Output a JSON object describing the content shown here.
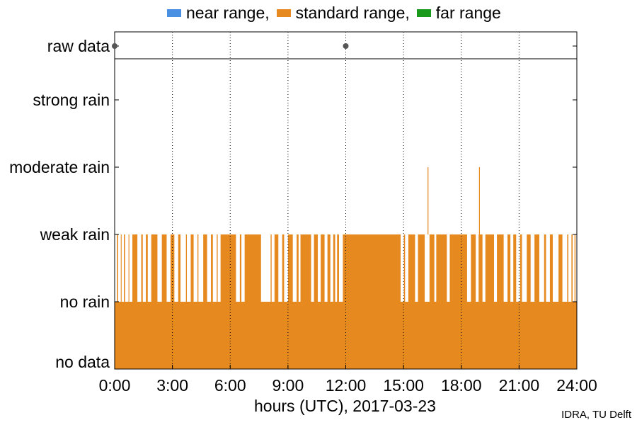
{
  "chart_data": {
    "type": "bar",
    "xlabel": "hours (UTC), 2017-03-23",
    "x_ticks": [
      "0:00",
      "3:00",
      "6:00",
      "9:00",
      "12:00",
      "15:00",
      "18:00",
      "21:00",
      "24:00"
    ],
    "x_range_hours": [
      0,
      24
    ],
    "y_categories": [
      "no data",
      "no rain",
      "weak rain",
      "moderate rain",
      "strong rain",
      "raw data"
    ],
    "grid": "vertical dotted at x ticks",
    "legend": {
      "placement": "top",
      "items": [
        {
          "label": "near range,",
          "color": "#4a90e2"
        },
        {
          "label": "standard range,",
          "color": "#e6891e"
        },
        {
          "label": "far range",
          "color": "#1a9a1a"
        }
      ]
    },
    "series": [
      {
        "name": "standard range",
        "color": "#e6891e",
        "baseline_level": "no rain",
        "weak_rain_intervals_hours": [
          [
            0.12,
            0.18
          ],
          [
            0.32,
            0.36
          ],
          [
            0.48,
            0.54
          ],
          [
            0.72,
            0.76
          ],
          [
            0.92,
            1.18
          ],
          [
            1.38,
            1.46
          ],
          [
            1.62,
            1.72
          ],
          [
            1.9,
            2.22
          ],
          [
            2.45,
            2.7
          ],
          [
            2.9,
            3.1
          ],
          [
            3.3,
            3.42
          ],
          [
            3.7,
            3.75
          ],
          [
            3.95,
            4.1
          ],
          [
            4.3,
            4.35
          ],
          [
            4.6,
            4.8
          ],
          [
            5.0,
            5.1
          ],
          [
            5.3,
            5.35
          ],
          [
            5.5,
            6.3
          ],
          [
            6.5,
            6.58
          ],
          [
            6.75,
            7.6
          ],
          [
            8.1,
            8.15
          ],
          [
            8.3,
            8.5
          ],
          [
            8.7,
            8.8
          ],
          [
            9.0,
            9.25
          ],
          [
            9.45,
            9.55
          ],
          [
            9.65,
            10.2
          ],
          [
            10.35,
            10.55
          ],
          [
            10.7,
            10.9
          ],
          [
            11.05,
            11.2
          ],
          [
            11.35,
            11.45
          ],
          [
            11.55,
            11.65
          ],
          [
            11.85,
            14.85
          ],
          [
            15.02,
            15.08
          ],
          [
            15.25,
            15.6
          ],
          [
            15.75,
            16.1
          ],
          [
            16.35,
            16.6
          ],
          [
            16.7,
            17.25
          ],
          [
            17.4,
            18.3
          ],
          [
            18.5,
            18.75
          ],
          [
            18.9,
            19.1
          ],
          [
            19.25,
            19.7
          ],
          [
            19.85,
            20.2
          ],
          [
            20.4,
            20.55
          ],
          [
            20.7,
            20.85
          ],
          [
            21.05,
            21.15
          ],
          [
            21.4,
            21.6
          ],
          [
            21.8,
            22.05
          ],
          [
            22.3,
            22.4
          ],
          [
            22.6,
            22.75
          ],
          [
            23.05,
            23.25
          ],
          [
            23.5,
            23.56
          ],
          [
            23.72,
            23.78
          ],
          [
            23.88,
            23.93
          ]
        ],
        "moderate_rain_spikes_hours": [
          16.25,
          18.92
        ]
      }
    ],
    "raw_data_points_hours": [
      0,
      12
    ]
  },
  "credit": "IDRA, TU Delft"
}
